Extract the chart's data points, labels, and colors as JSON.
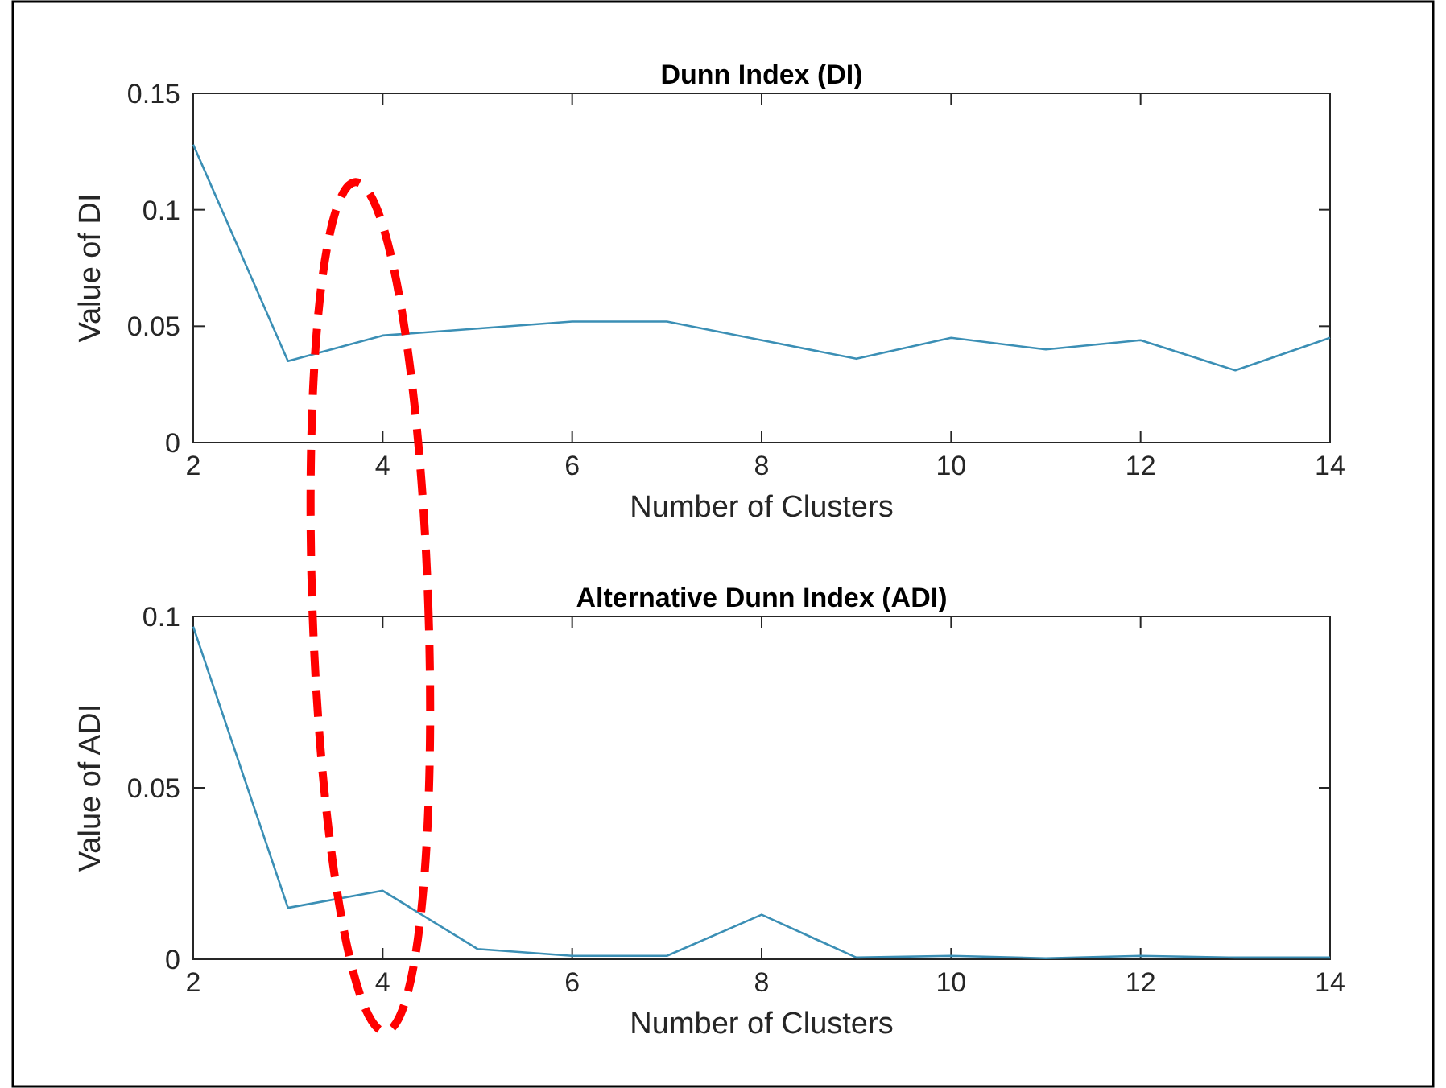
{
  "chart_data": [
    {
      "type": "line",
      "title": "Dunn Index (DI)",
      "xlabel": "Number of Clusters",
      "ylabel": "Value of DI",
      "x": [
        2,
        3,
        4,
        5,
        6,
        7,
        8,
        9,
        10,
        11,
        12,
        13,
        14
      ],
      "series": [
        {
          "color": "#3b8fb5",
          "values": [
            0.128,
            0.035,
            0.046,
            0.049,
            0.052,
            0.052,
            0.044,
            0.036,
            0.045,
            0.04,
            0.044,
            0.031,
            0.045
          ]
        }
      ],
      "xlim": [
        2,
        14
      ],
      "xticks": [
        2,
        4,
        6,
        8,
        10,
        12,
        14
      ],
      "ylim": [
        0,
        0.15
      ],
      "yticks": [
        0,
        0.05,
        0.1,
        0.15
      ],
      "grid": false,
      "marker": "none",
      "line_style": "solid"
    },
    {
      "type": "line",
      "title": "Alternative Dunn Index (ADI)",
      "xlabel": "Number of Clusters",
      "ylabel": "Value of ADI",
      "x": [
        2,
        3,
        4,
        5,
        6,
        7,
        8,
        9,
        10,
        11,
        12,
        13,
        14
      ],
      "series": [
        {
          "color": "#3b8fb5",
          "values": [
            0.097,
            0.015,
            0.02,
            0.003,
            0.001,
            0.001,
            0.013,
            0.0005,
            0.001,
            0.0003,
            0.001,
            0.0005,
            0.0005
          ]
        }
      ],
      "xlim": [
        2,
        14
      ],
      "xticks": [
        2,
        4,
        6,
        8,
        10,
        12,
        14
      ],
      "ylim": [
        0,
        0.1
      ],
      "yticks": [
        0,
        0.05,
        0.1
      ],
      "grid": false,
      "marker": "none",
      "line_style": "solid"
    }
  ]
}
